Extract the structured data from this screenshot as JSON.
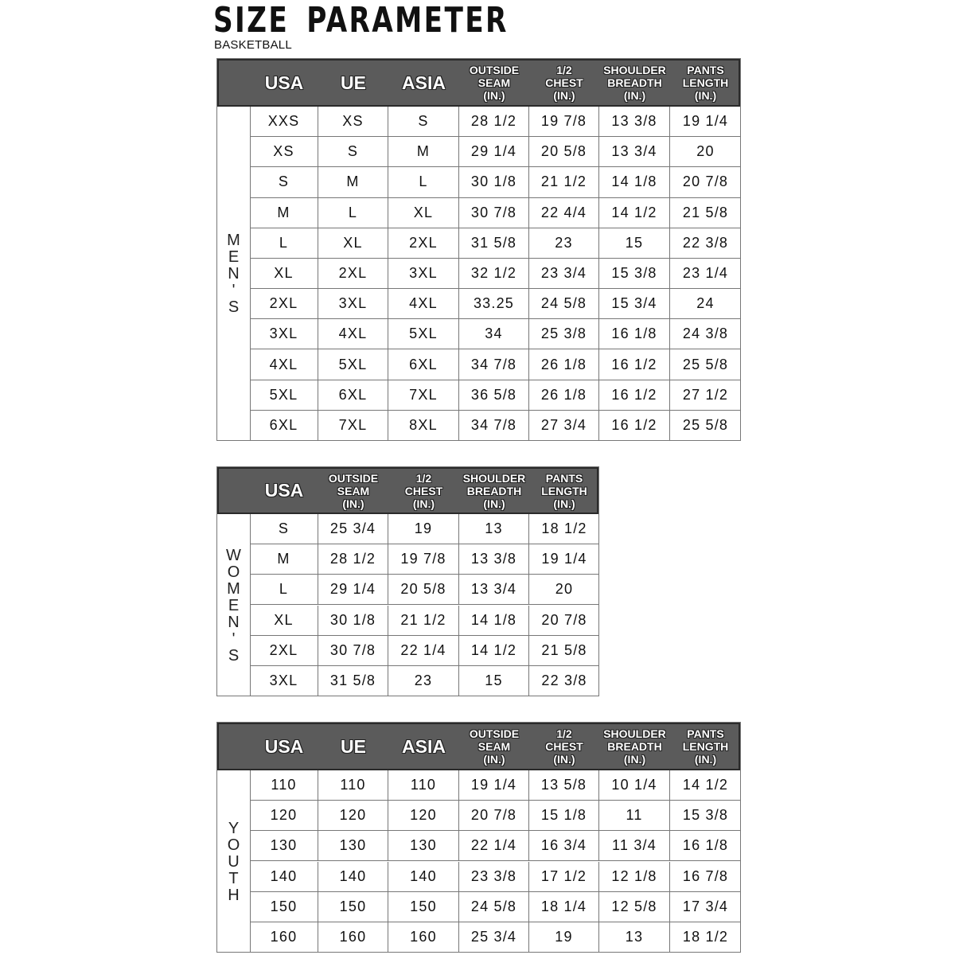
{
  "title": "SIZE PARAMETER",
  "subtitle": "BASKETBALL",
  "colors": {
    "header_bg": "#5b5b5b",
    "header_text": "#ffffff",
    "grid": "#777777"
  },
  "tables": [
    {
      "section": "MEN'S",
      "headers": [
        "USA",
        "UE",
        "ASIA",
        "OUTSIDE\nSEAM\n(IN.)",
        "1/2\nCHEST\n(IN.)",
        "SHOULDER\nBREADTH\n(IN.)",
        "PANTS\nLENGTH\n(IN.)"
      ],
      "rows": [
        [
          "XXS",
          "XS",
          "S",
          "28 1/2",
          "19 7/8",
          "13 3/8",
          "19 1/4"
        ],
        [
          "XS",
          "S",
          "M",
          "29 1/4",
          "20 5/8",
          "13 3/4",
          "20"
        ],
        [
          "S",
          "M",
          "L",
          "30 1/8",
          "21 1/2",
          "14 1/8",
          "20 7/8"
        ],
        [
          "M",
          "L",
          "XL",
          "30 7/8",
          "22 4/4",
          "14 1/2",
          "21 5/8"
        ],
        [
          "L",
          "XL",
          "2XL",
          "31 5/8",
          "23",
          "15",
          "22 3/8"
        ],
        [
          "XL",
          "2XL",
          "3XL",
          "32 1/2",
          "23 3/4",
          "15 3/8",
          "23 1/4"
        ],
        [
          "2XL",
          "3XL",
          "4XL",
          "33.25",
          "24 5/8",
          "15 3/4",
          "24"
        ],
        [
          "3XL",
          "4XL",
          "5XL",
          "34",
          "25 3/8",
          "16 1/8",
          "24 3/8"
        ],
        [
          "4XL",
          "5XL",
          "6XL",
          "34 7/8",
          "26 1/8",
          "16 1/2",
          "25 5/8"
        ],
        [
          "5XL",
          "6XL",
          "7XL",
          "36 5/8",
          "26 1/8",
          "16 1/2",
          "27 1/2"
        ],
        [
          "6XL",
          "7XL",
          "8XL",
          "34 7/8",
          "27 3/4",
          "16 1/2",
          "25 5/8"
        ]
      ]
    },
    {
      "section": "WOMEN'S",
      "headers": [
        "USA",
        "OUTSIDE\nSEAM\n(IN.)",
        "1/2\nCHEST\n(IN.)",
        "SHOULDER\nBREADTH\n(IN.)",
        "PANTS\nLENGTH\n(IN.)"
      ],
      "rows": [
        [
          "S",
          "25 3/4",
          "19",
          "13",
          "18 1/2"
        ],
        [
          "M",
          "28 1/2",
          "19 7/8",
          "13 3/8",
          "19 1/4"
        ],
        [
          "L",
          "29 1/4",
          "20 5/8",
          "13 3/4",
          "20"
        ],
        [
          "XL",
          "30 1/8",
          "21 1/2",
          "14 1/8",
          "20 7/8"
        ],
        [
          "2XL",
          "30 7/8",
          "22 1/4",
          "14 1/2",
          "21 5/8"
        ],
        [
          "3XL",
          "31 5/8",
          "23",
          "15",
          "22 3/8"
        ]
      ]
    },
    {
      "section": "YOUTH",
      "headers": [
        "USA",
        "UE",
        "ASIA",
        "OUTSIDE\nSEAM\n(IN.)",
        "1/2\nCHEST\n(IN.)",
        "SHOULDER\nBREADTH\n(IN.)",
        "PANTS\nLENGTH\n(IN.)"
      ],
      "rows": [
        [
          "110",
          "110",
          "110",
          "19 1/4",
          "13 5/8",
          "10 1/4",
          "14 1/2"
        ],
        [
          "120",
          "120",
          "120",
          "20 7/8",
          "15 1/8",
          "11",
          "15 3/8"
        ],
        [
          "130",
          "130",
          "130",
          "22 1/4",
          "16 3/4",
          "11 3/4",
          "16 1/8"
        ],
        [
          "140",
          "140",
          "140",
          "23 3/8",
          "17 1/2",
          "12 1/8",
          "16 7/8"
        ],
        [
          "150",
          "150",
          "150",
          "24 5/8",
          "18 1/4",
          "12 5/8",
          "17 3/4"
        ],
        [
          "160",
          "160",
          "160",
          "25 3/4",
          "19",
          "13",
          "18 1/2"
        ]
      ]
    }
  ]
}
